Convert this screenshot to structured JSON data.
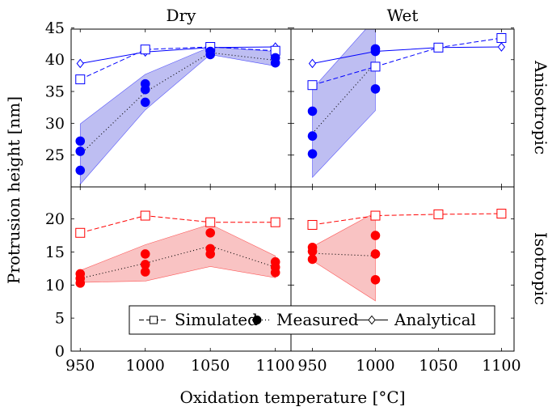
{
  "chart_data": {
    "type": "line",
    "xlabel": "Oxidation temperature [°C]",
    "ylabel": "Protrusion height [nm]",
    "columns": [
      "Dry",
      "Wet"
    ],
    "rows": [
      "Anisotropic",
      "Isotropic"
    ],
    "x_ticks": [
      950,
      1000,
      1050,
      1100
    ],
    "top_row": {
      "ylim": [
        20,
        45
      ],
      "y_ticks": [
        25,
        30,
        35,
        40,
        45
      ]
    },
    "bottom_row": {
      "ylim": [
        0,
        25
      ],
      "y_ticks": [
        0,
        5,
        10,
        15,
        20
      ]
    },
    "legend": {
      "placement": "bottom",
      "entries": [
        "Simulated",
        "Measured",
        "Analytical"
      ]
    },
    "colors": {
      "anisotropic": "#0000ff",
      "isotropic": "#ff0000",
      "aniso_band": "#b3b3f0",
      "iso_band": "#f8b8b8"
    },
    "panels": [
      {
        "row": "Anisotropic",
        "column": "Dry",
        "simulated": {
          "x": [
            950,
            1000,
            1050,
            1100
          ],
          "y": [
            36.9,
            41.6,
            42.0,
            41.4
          ]
        },
        "analytical": {
          "x": [
            950,
            1000,
            1050,
            1100
          ],
          "y": [
            39.4,
            41.2,
            41.9,
            42.0
          ]
        },
        "measured_points": {
          "x": [
            950,
            950,
            950,
            1000,
            1000,
            1000,
            1050,
            1050,
            1100,
            1100
          ],
          "y": [
            27.2,
            25.6,
            22.6,
            36.2,
            35.3,
            33.3,
            41.3,
            40.8,
            40.3,
            39.5
          ]
        },
        "measured_mean": {
          "x": [
            950,
            1000,
            1050,
            1100
          ],
          "y": [
            25.1,
            34.9,
            41.1,
            39.9
          ]
        },
        "band": {
          "x": [
            950,
            1000,
            1050,
            1100
          ],
          "upper": [
            29.9,
            37.7,
            42.0,
            41.3
          ],
          "lower": [
            20.4,
            32.1,
            40.8,
            39.0
          ]
        }
      },
      {
        "row": "Anisotropic",
        "column": "Wet",
        "simulated": {
          "x": [
            950,
            1000,
            1050,
            1100
          ],
          "y": [
            36.0,
            38.9,
            41.9,
            43.4
          ]
        },
        "analytical": {
          "x": [
            950,
            1000,
            1050,
            1100
          ],
          "y": [
            39.4,
            41.3,
            41.9,
            42.0
          ]
        },
        "measured_points": {
          "x": [
            950,
            950,
            950,
            1000,
            1000,
            1000
          ],
          "y": [
            31.9,
            28.0,
            25.2,
            41.7,
            41.3,
            35.4
          ]
        },
        "measured_mean": {
          "x": [
            950,
            1000
          ],
          "y": [
            28.4,
            39.5
          ]
        },
        "band": {
          "x": [
            950,
            1000
          ],
          "upper": [
            35.4,
            46.5
          ],
          "lower": [
            21.5,
            32.0
          ]
        }
      },
      {
        "row": "Isotropic",
        "column": "Dry",
        "simulated": {
          "x": [
            950,
            1000,
            1050,
            1100
          ],
          "y": [
            17.9,
            20.5,
            19.5,
            19.5
          ]
        },
        "measured_points": {
          "x": [
            950,
            950,
            950,
            1000,
            1000,
            1000,
            1050,
            1050,
            1050,
            1100,
            1100,
            1100
          ],
          "y": [
            11.7,
            11.0,
            10.3,
            14.7,
            13.1,
            12.0,
            17.9,
            15.5,
            14.7,
            13.5,
            12.7,
            11.9
          ]
        },
        "measured_mean": {
          "x": [
            950,
            1000,
            1050,
            1100
          ],
          "y": [
            11.0,
            13.3,
            15.9,
            12.7
          ]
        },
        "band": {
          "x": [
            950,
            1000,
            1050,
            1100
          ],
          "upper": [
            12.2,
            16.1,
            19.2,
            14.4
          ],
          "lower": [
            10.4,
            10.6,
            12.8,
            11.1
          ]
        }
      },
      {
        "row": "Isotropic",
        "column": "Wet",
        "simulated": {
          "x": [
            950,
            1000,
            1050,
            1100
          ],
          "y": [
            19.1,
            20.5,
            20.7,
            20.8
          ]
        },
        "measured_points": {
          "x": [
            950,
            950,
            950,
            1000,
            1000,
            1000
          ],
          "y": [
            15.7,
            15.1,
            13.9,
            17.5,
            14.7,
            10.8
          ]
        },
        "measured_mean": {
          "x": [
            950,
            1000
          ],
          "y": [
            14.8,
            14.4
          ]
        },
        "band": {
          "x": [
            950,
            1000
          ],
          "upper": [
            15.8,
            21.0
          ],
          "lower": [
            13.7,
            7.6
          ]
        }
      }
    ]
  }
}
